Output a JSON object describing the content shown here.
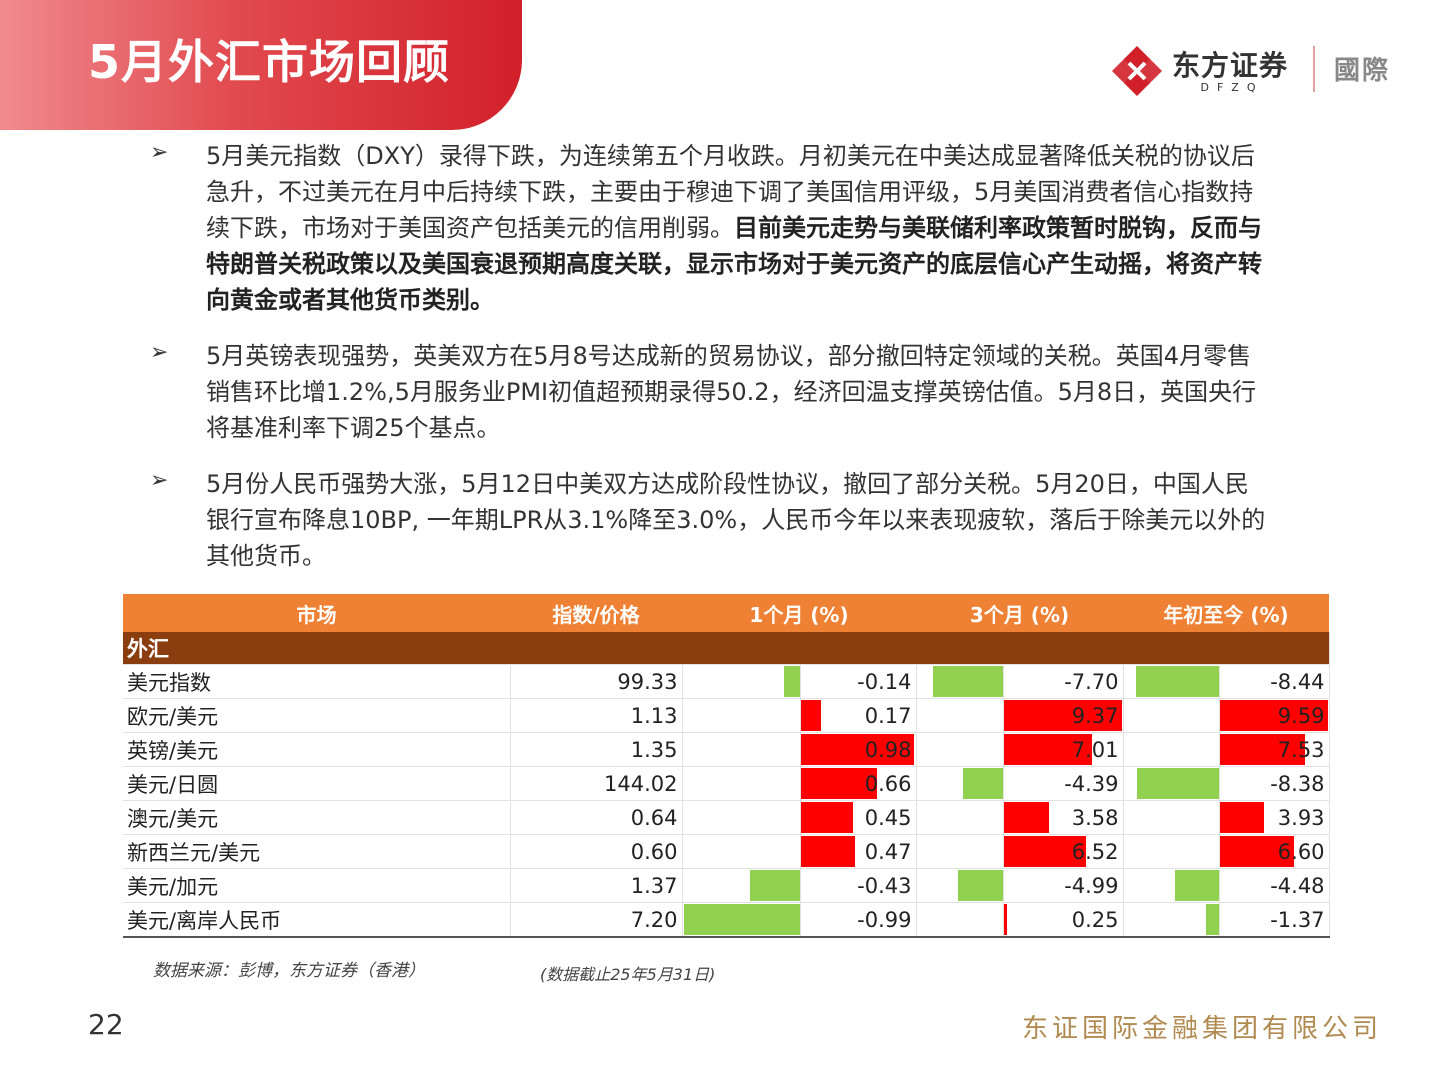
{
  "title": "5月外汇市场回顾",
  "logo": {
    "name_cn": "东方证券",
    "name_en": "DFZQ",
    "intl": "國際",
    "brand_color": "#d2202a"
  },
  "bullets": [
    {
      "text": "5月美元指数（DXY）录得下跌，为连续第五个月收跌。月初美元在中美达成显著降低关税的协议后急升，不过美元在月中后持续下跌，主要由于穆迪下调了美国信用评级，5月美国消费者信心指数持续下跌，市场对于美国资产包括美元的信用削弱。",
      "bold": "目前美元走势与美联储利率政策暂时脱钩，反而与特朗普关税政策以及美国衰退预期高度关联，显示市场对于美元资产的底层信心产生动摇，将资产转向黄金或者其他货币类别。"
    },
    {
      "text": "5月英镑表现强势，英美双方在5月8号达成新的贸易协议，部分撤回特定领域的关税。英国4月零售销售环比增1.2%,5月服务业PMI初值超预期录得50.2，经济回温支撑英镑估值。5月8日，英国央行将基准利率下调25个基点。",
      "bold": ""
    },
    {
      "text": "5月份人民币强势大涨，5月12日中美双方达成阶段性协议，撤回了部分关税。5月20日，中国人民银行宣布降息10BP, 一年期LPR从3.1%降至3.0%，人民币今年以来表现疲软，落后于除美元以外的其他货币。",
      "bold": ""
    }
  ],
  "table": {
    "headers": [
      "市场",
      "指数/价格",
      "1个月 (%)",
      "3个月 (%)",
      "年初至今 (%)"
    ],
    "section": "外汇",
    "colors": {
      "positive": "#ff0000",
      "negative": "#92d050",
      "header": "#ee8133",
      "section": "#8a3e10"
    },
    "rows": [
      {
        "name": "美元指数",
        "price": "99.33",
        "m1": -0.14,
        "m3": -7.7,
        "ytd": -8.44
      },
      {
        "name": "欧元/美元",
        "price": "1.13",
        "m1": 0.17,
        "m3": 9.37,
        "ytd": 9.59
      },
      {
        "name": "英镑/美元",
        "price": "1.35",
        "m1": 0.98,
        "m3": 7.01,
        "ytd": 7.53
      },
      {
        "name": "美元/日圆",
        "price": "144.02",
        "m1": 0.66,
        "m3": -4.39,
        "ytd": -8.38
      },
      {
        "name": "澳元/美元",
        "price": "0.64",
        "m1": 0.45,
        "m3": 3.58,
        "ytd": 3.93
      },
      {
        "name": "新西兰元/美元",
        "price": "0.60",
        "m1": 0.47,
        "m3": 6.52,
        "ytd": 6.6
      },
      {
        "name": "美元/加元",
        "price": "1.37",
        "m1": -0.43,
        "m3": -4.99,
        "ytd": -4.48
      },
      {
        "name": "美元/离岸人民币",
        "price": "7.20",
        "m1": -0.99,
        "m3": 0.25,
        "ytd": -1.37
      }
    ]
  },
  "source": "数据来源：彭博，东方证券（香港）",
  "asof": "(数据截止25年5月31日)",
  "page_number": "22",
  "company": "东证国际金融集团有限公司"
}
